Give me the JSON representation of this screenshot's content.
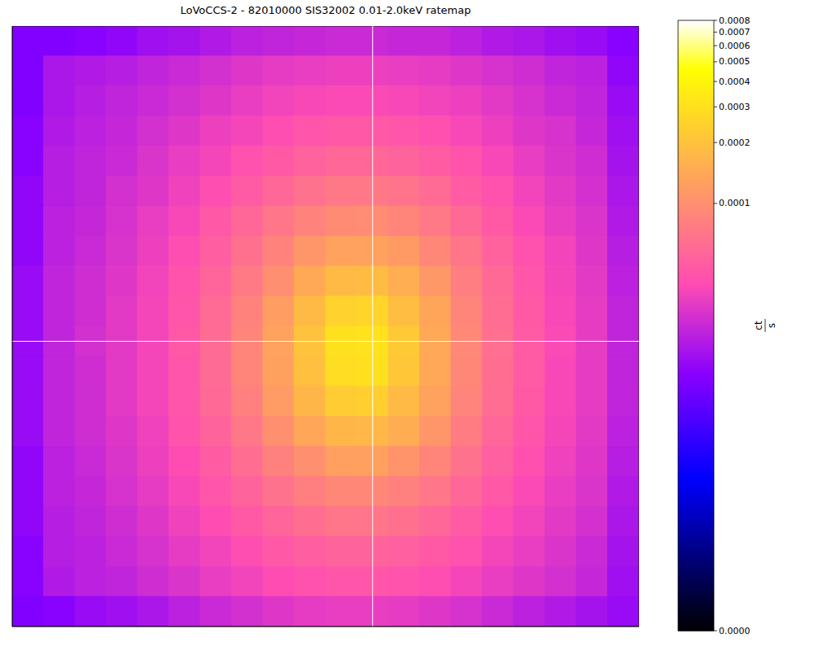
{
  "chart_data": {
    "type": "heatmap",
    "title": "LoVoCCS-2 - 82010000 SIS32002 0.01-2.0keV ratemap",
    "xlim": [
      0,
      20
    ],
    "ylim": [
      0,
      20
    ],
    "tick_labels": false,
    "crosshair": {
      "x": 11.5,
      "y": 9.5
    },
    "cells": [
      [
        1.3e-05,
        1.3e-05,
        1.4e-05,
        1.5e-05,
        1.7e-05,
        1.8e-05,
        2e-05,
        2.2e-05,
        2.3e-05,
        2.4e-05,
        2.5e-05,
        2.5e-05,
        2.4e-05,
        2.4e-05,
        2.2e-05,
        2e-05,
        1.9e-05,
        1.7e-05,
        1.6e-05,
        1.4e-05
      ],
      [
        1.3e-05,
        1.9e-05,
        2e-05,
        2.1e-05,
        2.3e-05,
        2.5e-05,
        2.7e-05,
        3e-05,
        3.2e-05,
        3.3e-05,
        3.4e-05,
        3.4e-05,
        3.3e-05,
        3.2e-05,
        3e-05,
        2.8e-05,
        2.6e-05,
        2.3e-05,
        2.2e-05,
        1.5e-05
      ],
      [
        1.3e-05,
        1.9e-05,
        2.1e-05,
        2.3e-05,
        2.5e-05,
        2.7e-05,
        3e-05,
        3.3e-05,
        3.6e-05,
        3.8e-05,
        3.9e-05,
        3.9e-05,
        3.8e-05,
        3.6e-05,
        3.4e-05,
        3.1e-05,
        2.8e-05,
        2.5e-05,
        2.3e-05,
        1.6e-05
      ],
      [
        1.4e-05,
        2e-05,
        2.2e-05,
        2.4e-05,
        2.7e-05,
        3e-05,
        3.4e-05,
        3.7e-05,
        4.1e-05,
        4.5e-05,
        4.7e-05,
        4.7e-05,
        4.6e-05,
        4.2e-05,
        3.8e-05,
        3.4e-05,
        3e-05,
        2.8e-05,
        2.4e-05,
        1.7e-05
      ],
      [
        1.4e-05,
        2.1e-05,
        2.3e-05,
        2.5e-05,
        2.9e-05,
        3.3e-05,
        3.7e-05,
        4.3e-05,
        4.8e-05,
        5.4e-05,
        5.8e-05,
        5.8e-05,
        5.5e-05,
        5e-05,
        4.4e-05,
        3.8e-05,
        3.3e-05,
        2.9e-05,
        2.6e-05,
        1.8e-05
      ],
      [
        1.5e-05,
        2.1e-05,
        2.3e-05,
        2.7e-05,
        3e-05,
        3.5e-05,
        4.1e-05,
        4.9e-05,
        5.8e-05,
        6.7e-05,
        7.3e-05,
        7.3e-05,
        6.9e-05,
        6.1e-05,
        5e-05,
        4.3e-05,
        3.6e-05,
        3.1e-05,
        2.7e-05,
        1.9e-05
      ],
      [
        1.5e-05,
        2.2e-05,
        2.4e-05,
        2.8e-05,
        3.3e-05,
        3.8e-05,
        4.7e-05,
        5.8e-05,
        7.2e-05,
        8.5e-05,
        9.5e-05,
        9.6e-05,
        8.7e-05,
        7.4e-05,
        6e-05,
        4.8e-05,
        3.9e-05,
        3.3e-05,
        2.9e-05,
        2e-05
      ],
      [
        1.5e-05,
        2.2e-05,
        2.5e-05,
        2.9e-05,
        3.4e-05,
        4.1e-05,
        5.1e-05,
        6.6e-05,
        8.5e-05,
        0.00011,
        0.00013,
        0.00013,
        0.000116,
        9e-05,
        7e-05,
        5.4e-05,
        4.3e-05,
        3.6e-05,
        3e-05,
        2.1e-05
      ],
      [
        1.6e-05,
        2.3e-05,
        2.6e-05,
        3e-05,
        3.6e-05,
        4.4e-05,
        5.6e-05,
        7.5e-05,
        0.0001,
        0.000143,
        0.00018,
        0.000184,
        0.000154,
        0.000113,
        8e-05,
        6e-05,
        4.6e-05,
        3.7e-05,
        3.1e-05,
        2.2e-05
      ],
      [
        1.6e-05,
        2.3e-05,
        2.6e-05,
        3.1e-05,
        3.7e-05,
        4.6e-05,
        6.1e-05,
        8.4e-05,
        0.000122,
        0.00018,
        0.00025,
        0.00026,
        0.00019,
        0.000135,
        8.7e-05,
        6.3e-05,
        4.8e-05,
        3.8e-05,
        3.2e-05,
        2.3e-05
      ],
      [
        1.6e-05,
        2.3e-05,
        2.7e-05,
        3.1e-05,
        3.7e-05,
        4.7e-05,
        6.2e-05,
        8.8e-05,
        0.00013,
        0.0002,
        0.0003,
        0.00031,
        0.00022,
        0.000143,
        9.1e-05,
        6.5e-05,
        4.9e-05,
        3.9e-05,
        3.2e-05,
        2.3e-05
      ],
      [
        1.6e-05,
        2.3e-05,
        2.6e-05,
        3.1e-05,
        3.7e-05,
        4.6e-05,
        6.2e-05,
        8.7e-05,
        0.000128,
        0.000195,
        0.00029,
        0.0003,
        0.000215,
        0.000141,
        9e-05,
        6.4e-05,
        4.9e-05,
        3.8e-05,
        3.2e-05,
        2.3e-05
      ],
      [
        1.6e-05,
        2.3e-05,
        2.6e-05,
        3.1e-05,
        3.7e-05,
        4.6e-05,
        6e-05,
        8.2e-05,
        0.000118,
        0.00017,
        0.00023,
        0.00024,
        0.00018,
        0.00013,
        8.6e-05,
        6.3e-05,
        4.8e-05,
        3.8e-05,
        3.2e-05,
        2.3e-05
      ],
      [
        1.6e-05,
        2.3e-05,
        2.6e-05,
        3e-05,
        3.5e-05,
        4.4e-05,
        5.5e-05,
        7.3e-05,
        0.000102,
        0.000137,
        0.00017,
        0.000175,
        0.00015,
        0.00011,
        7.7e-05,
        5.8e-05,
        4.6e-05,
        3.7e-05,
        3.1e-05,
        2.2e-05
      ],
      [
        1.5e-05,
        2.2e-05,
        2.5e-05,
        2.9e-05,
        3.4e-05,
        4e-05,
        5e-05,
        6.4e-05,
        8.3e-05,
        0.000102,
        0.000124,
        0.000126,
        0.000108,
        8.8e-05,
        6.7e-05,
        5.3e-05,
        4.2e-05,
        3.5e-05,
        3e-05,
        2.1e-05
      ],
      [
        1.5e-05,
        2.2e-05,
        2.4e-05,
        2.8e-05,
        3.2e-05,
        3.8e-05,
        4.6e-05,
        5.5e-05,
        6.7e-05,
        8.1e-05,
        9e-05,
        9e-05,
        8.3e-05,
        7.2e-05,
        5.8e-05,
        4.7e-05,
        3.9e-05,
        3.3e-05,
        2.9e-05,
        2e-05
      ],
      [
        1.5e-05,
        2.1e-05,
        2.3e-05,
        2.6e-05,
        3e-05,
        3.5e-05,
        4e-05,
        4.8e-05,
        5.6e-05,
        6.4e-05,
        7e-05,
        7e-05,
        6.6e-05,
        5.8e-05,
        4.9e-05,
        4.1e-05,
        3.6e-05,
        3.1e-05,
        2.7e-05,
        1.9e-05
      ],
      [
        1.4e-05,
        2.1e-05,
        2.2e-05,
        2.5e-05,
        2.8e-05,
        3.2e-05,
        3.6e-05,
        4.1e-05,
        4.7e-05,
        5.2e-05,
        5.5e-05,
        5.5e-05,
        5.3e-05,
        4.8e-05,
        4.3e-05,
        3.7e-05,
        3.3e-05,
        2.9e-05,
        2.5e-05,
        1.8e-05
      ],
      [
        1.4e-05,
        2e-05,
        2.2e-05,
        2.3e-05,
        2.6e-05,
        2.9e-05,
        3.3e-05,
        3.6e-05,
        4e-05,
        4.3e-05,
        4.6e-05,
        4.6e-05,
        4.4e-05,
        4.1e-05,
        3.7e-05,
        3.3e-05,
        3e-05,
        2.7e-05,
        2.4e-05,
        1.7e-05
      ],
      [
        1.3e-05,
        1.4e-05,
        1.6e-05,
        1.7e-05,
        1.9e-05,
        2.2e-05,
        2.5e-05,
        2.7e-05,
        3e-05,
        3.2e-05,
        3.3e-05,
        3.3e-05,
        3.2e-05,
        3e-05,
        2.8e-05,
        2.5e-05,
        2.2e-05,
        2e-05,
        1.8e-05,
        1.6e-05
      ]
    ],
    "colorbar": {
      "range": [
        0,
        0.0008
      ],
      "ticks": [
        {
          "value": 0,
          "label": "0.0000"
        },
        0.0001,
        0.0002,
        0.0003,
        0.0004,
        0.0005,
        0.0006,
        0.0007,
        0.0008
      ],
      "label": {
        "numerator": "ct",
        "denominator": "s"
      }
    }
  }
}
